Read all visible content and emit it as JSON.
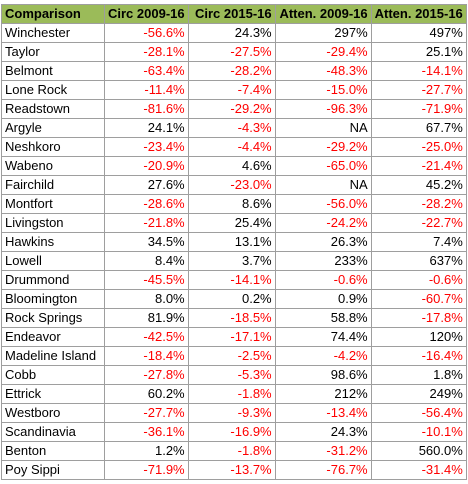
{
  "table": {
    "headers": [
      "Comparison",
      "Circ 2009-16",
      "Circ 2015-16",
      "Atten. 2009-16",
      "Atten. 2015-16"
    ],
    "rows": [
      [
        "Winchester",
        "-56.6%",
        "24.3%",
        "297%",
        "497%"
      ],
      [
        "Taylor",
        "-28.1%",
        "-27.5%",
        "-29.4%",
        "25.1%"
      ],
      [
        "Belmont",
        "-63.4%",
        "-28.2%",
        "-48.3%",
        "-14.1%"
      ],
      [
        "Lone Rock",
        "-11.4%",
        "-7.4%",
        "-15.0%",
        "-27.7%"
      ],
      [
        "Readstown",
        "-81.6%",
        "-29.2%",
        "-96.3%",
        "-71.9%"
      ],
      [
        "Argyle",
        "24.1%",
        "-4.3%",
        "NA",
        "67.7%"
      ],
      [
        "Neshkoro",
        "-23.4%",
        "-4.4%",
        "-29.2%",
        "-25.0%"
      ],
      [
        "Wabeno",
        "-20.9%",
        "4.6%",
        "-65.0%",
        "-21.4%"
      ],
      [
        "Fairchild",
        "27.6%",
        "-23.0%",
        "NA",
        "45.2%"
      ],
      [
        "Montfort",
        "-28.6%",
        "8.6%",
        "-56.0%",
        "-28.2%"
      ],
      [
        "Livingston",
        "-21.8%",
        "25.4%",
        "-24.2%",
        "-22.7%"
      ],
      [
        "Hawkins",
        "34.5%",
        "13.1%",
        "26.3%",
        "7.4%"
      ],
      [
        "Lowell",
        "8.4%",
        "3.7%",
        "233%",
        "637%"
      ],
      [
        "Drummond",
        "-45.5%",
        "-14.1%",
        "-0.6%",
        "-0.6%"
      ],
      [
        "Bloomington",
        "8.0%",
        "0.2%",
        "0.9%",
        "-60.7%"
      ],
      [
        "Rock Springs",
        "81.9%",
        "-18.5%",
        "58.8%",
        "-17.8%"
      ],
      [
        "Endeavor",
        "-42.5%",
        "-17.1%",
        "74.4%",
        "120%"
      ],
      [
        "Madeline Island",
        "-18.4%",
        "-2.5%",
        "-4.2%",
        "-16.4%"
      ],
      [
        "Cobb",
        "-27.8%",
        "-5.3%",
        "98.6%",
        "1.8%"
      ],
      [
        "Ettrick",
        "60.2%",
        "-1.8%",
        "212%",
        "249%"
      ],
      [
        "Westboro",
        "-27.7%",
        "-9.3%",
        "-13.4%",
        "-56.4%"
      ],
      [
        "Scandinavia",
        "-36.1%",
        "-16.9%",
        "24.3%",
        "-10.1%"
      ],
      [
        "Benton",
        "1.2%",
        "-1.8%",
        "-31.2%",
        "560.0%"
      ],
      [
        "Poy Sippi",
        "-71.9%",
        "-13.7%",
        "-76.7%",
        "-31.4%"
      ]
    ]
  },
  "colors": {
    "header_bg": "#9bbb59",
    "negative": "#ff0000",
    "positive": "#000000",
    "grid": "#9e9e9e"
  }
}
